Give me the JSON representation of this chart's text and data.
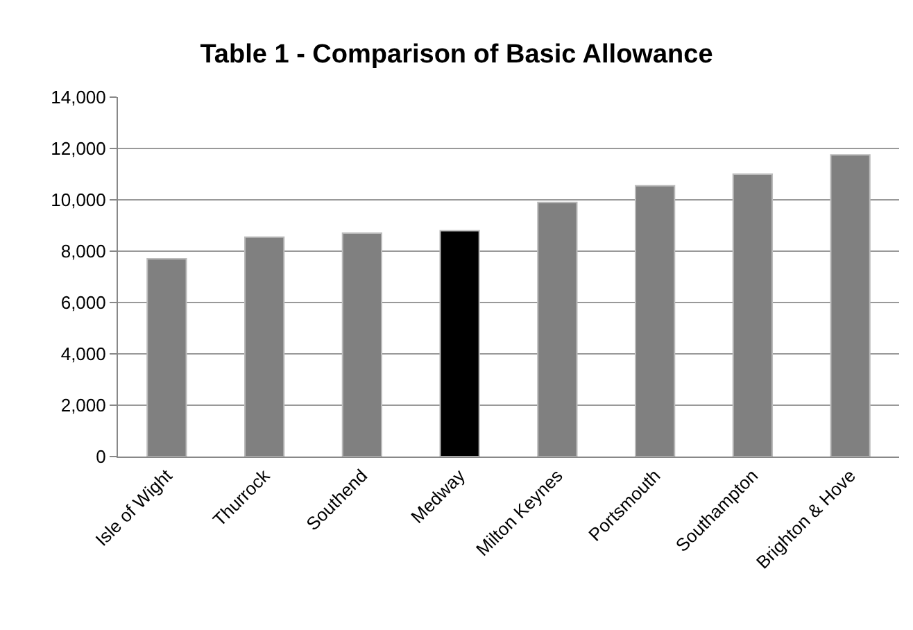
{
  "chart_data": {
    "type": "bar",
    "title": "Table 1 - Comparison of Basic Allowance",
    "categories": [
      "Isle of Wight",
      "Thurrock",
      "Southend",
      "Medway",
      "Milton Keynes",
      "Portsmouth",
      "Southampton",
      "Brighton & Hove"
    ],
    "values": [
      7700,
      8550,
      8700,
      8800,
      9900,
      10550,
      11000,
      11750
    ],
    "colors": [
      "#808080",
      "#808080",
      "#808080",
      "#000000",
      "#808080",
      "#808080",
      "#808080",
      "#808080"
    ],
    "ylim": [
      0,
      14000
    ],
    "yticks": [
      {
        "value": 0,
        "label": "0"
      },
      {
        "value": 2000,
        "label": "2,000"
      },
      {
        "value": 4000,
        "label": "4,000"
      },
      {
        "value": 6000,
        "label": "6,000"
      },
      {
        "value": 8000,
        "label": "8,000"
      },
      {
        "value": 10000,
        "label": "10,000"
      },
      {
        "value": 12000,
        "label": "12,000"
      },
      {
        "value": 14000,
        "label": "14,000"
      }
    ],
    "grid": "y"
  }
}
